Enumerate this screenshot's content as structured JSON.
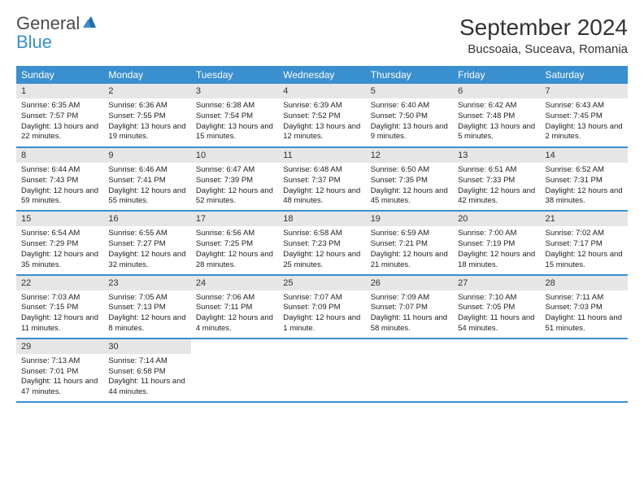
{
  "logo": {
    "general": "General",
    "blue": "Blue"
  },
  "title": "September 2024",
  "location": "Bucsoaia, Suceava, Romania",
  "dow": [
    "Sunday",
    "Monday",
    "Tuesday",
    "Wednesday",
    "Thursday",
    "Friday",
    "Saturday"
  ],
  "colors": {
    "header_bg": "#3a8fcf",
    "header_text": "#ffffff",
    "daynum_bg": "#e6e6e6",
    "row_border": "#3a8fcf",
    "logo_blue": "#3a8fcf",
    "logo_gray": "#4a4a4a"
  },
  "weeks": [
    [
      {
        "n": "1",
        "sr": "Sunrise: 6:35 AM",
        "ss": "Sunset: 7:57 PM",
        "dl": "Daylight: 13 hours and 22 minutes."
      },
      {
        "n": "2",
        "sr": "Sunrise: 6:36 AM",
        "ss": "Sunset: 7:55 PM",
        "dl": "Daylight: 13 hours and 19 minutes."
      },
      {
        "n": "3",
        "sr": "Sunrise: 6:38 AM",
        "ss": "Sunset: 7:54 PM",
        "dl": "Daylight: 13 hours and 15 minutes."
      },
      {
        "n": "4",
        "sr": "Sunrise: 6:39 AM",
        "ss": "Sunset: 7:52 PM",
        "dl": "Daylight: 13 hours and 12 minutes."
      },
      {
        "n": "5",
        "sr": "Sunrise: 6:40 AM",
        "ss": "Sunset: 7:50 PM",
        "dl": "Daylight: 13 hours and 9 minutes."
      },
      {
        "n": "6",
        "sr": "Sunrise: 6:42 AM",
        "ss": "Sunset: 7:48 PM",
        "dl": "Daylight: 13 hours and 5 minutes."
      },
      {
        "n": "7",
        "sr": "Sunrise: 6:43 AM",
        "ss": "Sunset: 7:45 PM",
        "dl": "Daylight: 13 hours and 2 minutes."
      }
    ],
    [
      {
        "n": "8",
        "sr": "Sunrise: 6:44 AM",
        "ss": "Sunset: 7:43 PM",
        "dl": "Daylight: 12 hours and 59 minutes."
      },
      {
        "n": "9",
        "sr": "Sunrise: 6:46 AM",
        "ss": "Sunset: 7:41 PM",
        "dl": "Daylight: 12 hours and 55 minutes."
      },
      {
        "n": "10",
        "sr": "Sunrise: 6:47 AM",
        "ss": "Sunset: 7:39 PM",
        "dl": "Daylight: 12 hours and 52 minutes."
      },
      {
        "n": "11",
        "sr": "Sunrise: 6:48 AM",
        "ss": "Sunset: 7:37 PM",
        "dl": "Daylight: 12 hours and 48 minutes."
      },
      {
        "n": "12",
        "sr": "Sunrise: 6:50 AM",
        "ss": "Sunset: 7:35 PM",
        "dl": "Daylight: 12 hours and 45 minutes."
      },
      {
        "n": "13",
        "sr": "Sunrise: 6:51 AM",
        "ss": "Sunset: 7:33 PM",
        "dl": "Daylight: 12 hours and 42 minutes."
      },
      {
        "n": "14",
        "sr": "Sunrise: 6:52 AM",
        "ss": "Sunset: 7:31 PM",
        "dl": "Daylight: 12 hours and 38 minutes."
      }
    ],
    [
      {
        "n": "15",
        "sr": "Sunrise: 6:54 AM",
        "ss": "Sunset: 7:29 PM",
        "dl": "Daylight: 12 hours and 35 minutes."
      },
      {
        "n": "16",
        "sr": "Sunrise: 6:55 AM",
        "ss": "Sunset: 7:27 PM",
        "dl": "Daylight: 12 hours and 32 minutes."
      },
      {
        "n": "17",
        "sr": "Sunrise: 6:56 AM",
        "ss": "Sunset: 7:25 PM",
        "dl": "Daylight: 12 hours and 28 minutes."
      },
      {
        "n": "18",
        "sr": "Sunrise: 6:58 AM",
        "ss": "Sunset: 7:23 PM",
        "dl": "Daylight: 12 hours and 25 minutes."
      },
      {
        "n": "19",
        "sr": "Sunrise: 6:59 AM",
        "ss": "Sunset: 7:21 PM",
        "dl": "Daylight: 12 hours and 21 minutes."
      },
      {
        "n": "20",
        "sr": "Sunrise: 7:00 AM",
        "ss": "Sunset: 7:19 PM",
        "dl": "Daylight: 12 hours and 18 minutes."
      },
      {
        "n": "21",
        "sr": "Sunrise: 7:02 AM",
        "ss": "Sunset: 7:17 PM",
        "dl": "Daylight: 12 hours and 15 minutes."
      }
    ],
    [
      {
        "n": "22",
        "sr": "Sunrise: 7:03 AM",
        "ss": "Sunset: 7:15 PM",
        "dl": "Daylight: 12 hours and 11 minutes."
      },
      {
        "n": "23",
        "sr": "Sunrise: 7:05 AM",
        "ss": "Sunset: 7:13 PM",
        "dl": "Daylight: 12 hours and 8 minutes."
      },
      {
        "n": "24",
        "sr": "Sunrise: 7:06 AM",
        "ss": "Sunset: 7:11 PM",
        "dl": "Daylight: 12 hours and 4 minutes."
      },
      {
        "n": "25",
        "sr": "Sunrise: 7:07 AM",
        "ss": "Sunset: 7:09 PM",
        "dl": "Daylight: 12 hours and 1 minute."
      },
      {
        "n": "26",
        "sr": "Sunrise: 7:09 AM",
        "ss": "Sunset: 7:07 PM",
        "dl": "Daylight: 11 hours and 58 minutes."
      },
      {
        "n": "27",
        "sr": "Sunrise: 7:10 AM",
        "ss": "Sunset: 7:05 PM",
        "dl": "Daylight: 11 hours and 54 minutes."
      },
      {
        "n": "28",
        "sr": "Sunrise: 7:11 AM",
        "ss": "Sunset: 7:03 PM",
        "dl": "Daylight: 11 hours and 51 minutes."
      }
    ],
    [
      {
        "n": "29",
        "sr": "Sunrise: 7:13 AM",
        "ss": "Sunset: 7:01 PM",
        "dl": "Daylight: 11 hours and 47 minutes."
      },
      {
        "n": "30",
        "sr": "Sunrise: 7:14 AM",
        "ss": "Sunset: 6:58 PM",
        "dl": "Daylight: 11 hours and 44 minutes."
      },
      null,
      null,
      null,
      null,
      null
    ]
  ]
}
